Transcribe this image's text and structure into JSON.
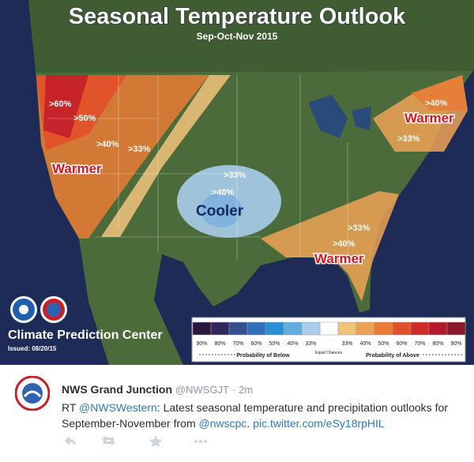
{
  "map": {
    "title": "Seasonal Temperature Outlook",
    "subtitle": "Sep-Oct-Nov 2015",
    "labels": {
      "west_60": ">60%",
      "west_50": ">50%",
      "west_40": ">40%",
      "west_33": ">33%",
      "west_warmer": "Warmer",
      "central_33": ">33%",
      "central_40": ">40%",
      "central_cooler": "Cooler",
      "ne_40": ">40%",
      "ne_warmer": "Warmer",
      "ne_33": ">33%",
      "se_33": ">33%",
      "se_40": ">40%",
      "se_warmer": "Warmer"
    },
    "center": "Climate Prediction Center",
    "issued": "Issued: 08/20/15",
    "legend": {
      "below": [
        {
          "label": "90%",
          "color": "#2a1740"
        },
        {
          "label": "80%",
          "color": "#33285e"
        },
        {
          "label": "70%",
          "color": "#34508f"
        },
        {
          "label": "60%",
          "color": "#2f6fb8"
        },
        {
          "label": "50%",
          "color": "#2a8fd4"
        },
        {
          "label": "40%",
          "color": "#63ace0"
        },
        {
          "label": "33%",
          "color": "#a9cdea"
        }
      ],
      "above": [
        {
          "label": "33%",
          "color": "#f3c37e"
        },
        {
          "label": "40%",
          "color": "#eea255"
        },
        {
          "label": "50%",
          "color": "#e97b35"
        },
        {
          "label": "60%",
          "color": "#e2502a"
        },
        {
          "label": "70%",
          "color": "#d22a27"
        },
        {
          "label": "80%",
          "color": "#b4192c"
        },
        {
          "label": "90%",
          "color": "#8a1a2a"
        }
      ],
      "below_title": "Probability of Below",
      "equal_chances": "Equal Chances",
      "above_title": "Probability of Above"
    }
  },
  "tweet": {
    "name": "NWS Grand Junction",
    "handle": "@NWSGJT",
    "separator": "·",
    "time": "2m",
    "text": {
      "rt": "RT",
      "mention": "@NWSWestern",
      "body": ": Latest seasonal temperature and precipitation outlooks for September-November from",
      "mention2": "@nwscpc",
      "period": ".",
      "link": "pic.twitter.com/eSy18rpHIL"
    }
  }
}
